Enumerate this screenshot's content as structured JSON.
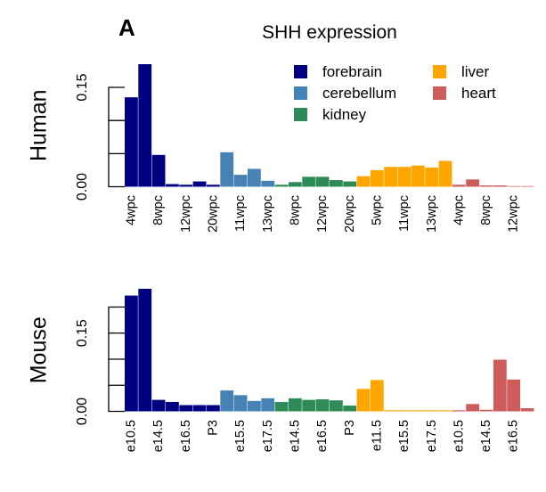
{
  "figure": {
    "panel_letter": "A",
    "title": "SHH expression"
  },
  "legend": {
    "items": [
      {
        "label": "forebrain",
        "color": "#000080"
      },
      {
        "label": "liver",
        "color": "#FFA500"
      },
      {
        "label": "cerebellum",
        "color": "#4682B4"
      },
      {
        "label": "heart",
        "color": "#CD5C5C"
      },
      {
        "label": "kidney",
        "color": "#2E8B57"
      }
    ]
  },
  "chart_data": [
    {
      "type": "bar",
      "title": "SHH expression",
      "ylabel": "Human",
      "ylim": [
        0,
        0.185
      ],
      "y_ticks": [
        0.0,
        0.15
      ],
      "y_tick_labels": [
        "0.00",
        "0.15"
      ],
      "y_minor_ticks": [
        0.0,
        0.05,
        0.1,
        0.15
      ],
      "grid": false,
      "legend_position": "top-right",
      "x_tick_labels": [
        "4wpc",
        "8wpc",
        "12wpc",
        "20wpc",
        "11wpc",
        "13wpc",
        "8wpc",
        "12wpc",
        "20wpc",
        "5wpc",
        "11wpc",
        "13wpc",
        "4wpc",
        "8wpc",
        "12wpc"
      ],
      "x_tick_positions": [
        0,
        2,
        4,
        6,
        8,
        10,
        12,
        14,
        16,
        18,
        20,
        22,
        24,
        26,
        28
      ],
      "values": [
        0.135,
        0.185,
        0.048,
        0.004,
        0.003,
        0.008,
        0.003,
        0.052,
        0.018,
        0.027,
        0.009,
        0.003,
        0.007,
        0.015,
        0.015,
        0.01,
        0.008,
        0.016,
        0.025,
        0.03,
        0.03,
        0.032,
        0.029,
        0.039,
        0.003,
        0.011,
        0.002,
        0.002,
        0.001,
        0.001
      ],
      "tissues": [
        "forebrain",
        "forebrain",
        "forebrain",
        "forebrain",
        "forebrain",
        "forebrain",
        "forebrain",
        "cerebellum",
        "cerebellum",
        "cerebellum",
        "cerebellum",
        "kidney",
        "kidney",
        "kidney",
        "kidney",
        "kidney",
        "kidney",
        "liver",
        "liver",
        "liver",
        "liver",
        "liver",
        "liver",
        "liver",
        "heart",
        "heart",
        "heart",
        "heart",
        "heart",
        "heart"
      ]
    },
    {
      "type": "bar",
      "ylabel": "Mouse",
      "ylim": [
        0,
        0.235
      ],
      "y_ticks": [
        0.0,
        0.15
      ],
      "y_tick_labels": [
        "0.00",
        "0.15"
      ],
      "y_minor_ticks": [
        0.0,
        0.05,
        0.1,
        0.15,
        0.2
      ],
      "grid": false,
      "x_tick_labels": [
        "e10.5",
        "e14.5",
        "e16.5",
        "P3",
        "e15.5",
        "e17.5",
        "e14.5",
        "e16.5",
        "P3",
        "e11.5",
        "e15.5",
        "e17.5",
        "e10.5",
        "e14.5",
        "e16.5"
      ],
      "x_tick_positions": [
        0,
        2,
        4,
        6,
        8,
        10,
        12,
        14,
        16,
        18,
        20,
        22,
        24,
        26,
        28
      ],
      "values": [
        0.222,
        0.235,
        0.022,
        0.018,
        0.012,
        0.012,
        0.012,
        0.04,
        0.031,
        0.02,
        0.025,
        0.018,
        0.025,
        0.022,
        0.023,
        0.021,
        0.011,
        0.043,
        0.06,
        0.002,
        0.002,
        0.002,
        0.002,
        0.002,
        0.002,
        0.014,
        0.003,
        0.099,
        0.061,
        0.006
      ],
      "tissues": [
        "forebrain",
        "forebrain",
        "forebrain",
        "forebrain",
        "forebrain",
        "forebrain",
        "forebrain",
        "cerebellum",
        "cerebellum",
        "cerebellum",
        "cerebellum",
        "kidney",
        "kidney",
        "kidney",
        "kidney",
        "kidney",
        "kidney",
        "liver",
        "liver",
        "liver",
        "liver",
        "liver",
        "liver",
        "liver",
        "heart",
        "heart",
        "heart",
        "heart",
        "heart",
        "heart"
      ]
    }
  ]
}
